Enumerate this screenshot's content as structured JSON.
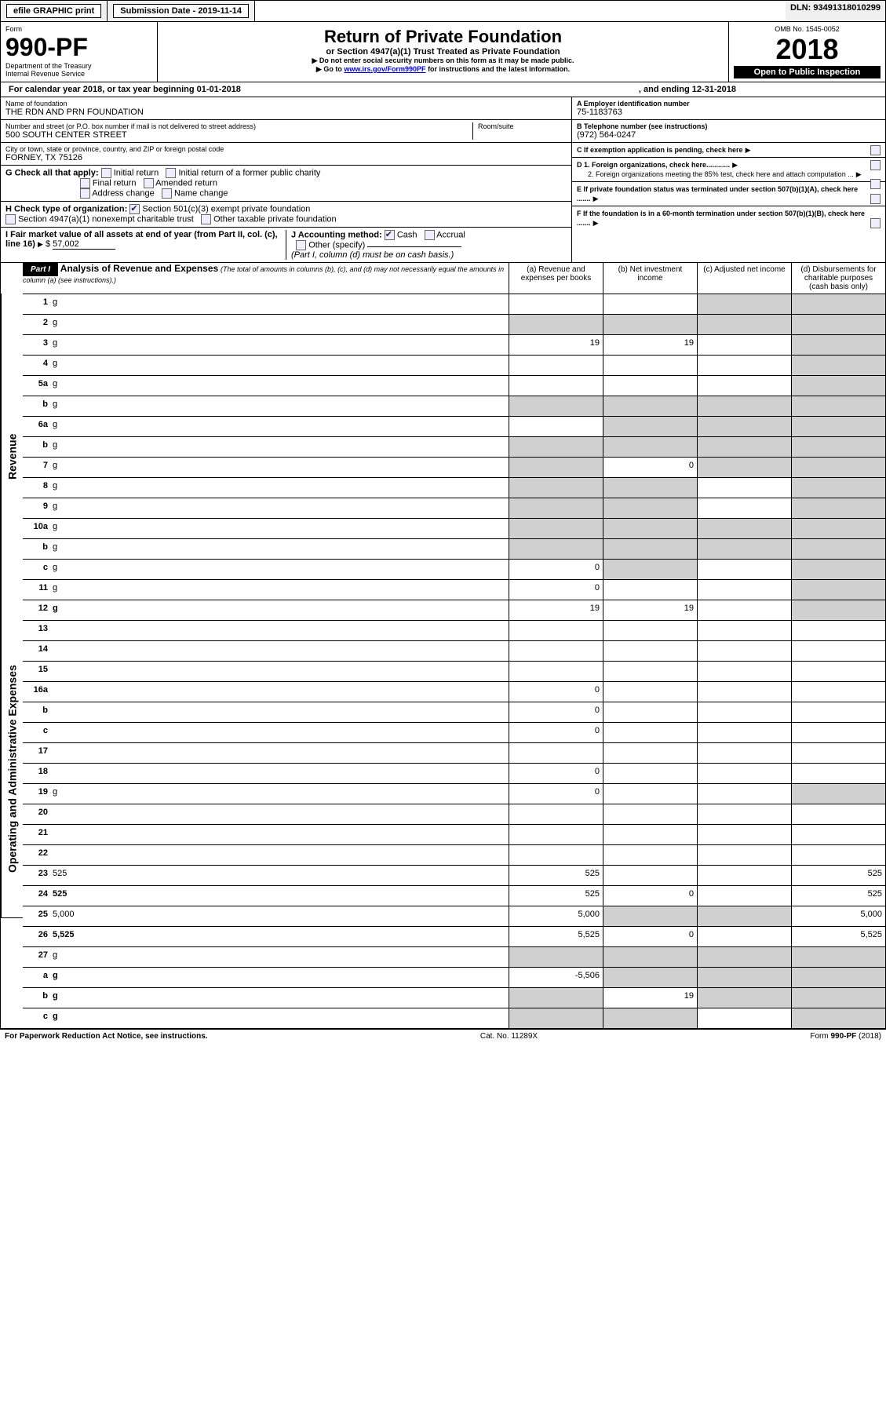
{
  "topbar": {
    "efile": "efile GRAPHIC print",
    "submission": "Submission Date - 2019-11-14",
    "dln": "DLN: 93491318010299"
  },
  "header": {
    "form_label": "Form",
    "form_number": "990-PF",
    "dept": "Department of the Treasury",
    "irs": "Internal Revenue Service",
    "title": "Return of Private Foundation",
    "subtitle": "or Section 4947(a)(1) Trust Treated as Private Foundation",
    "note1": "Do not enter social security numbers on this form as it may be made public.",
    "note2_pre": "Go to ",
    "note2_link": "www.irs.gov/Form990PF",
    "note2_post": " for instructions and the latest information.",
    "omb": "OMB No. 1545-0052",
    "year": "2018",
    "open": "Open to Public Inspection"
  },
  "yearline": {
    "prefix": "For calendar year 2018, or tax year beginning 01-01-2018",
    "ending": ", and ending 12-31-2018"
  },
  "entity": {
    "name_label": "Name of foundation",
    "name": "THE RDN AND PRN FOUNDATION",
    "addr_label": "Number and street (or P.O. box number if mail is not delivered to street address)",
    "addr": "500 SOUTH CENTER STREET",
    "room_label": "Room/suite",
    "city_label": "City or town, state or province, country, and ZIP or foreign postal code",
    "city": "FORNEY, TX  75126"
  },
  "ein": {
    "label": "A Employer identification number",
    "value": "75-1183763"
  },
  "phone": {
    "label": "B Telephone number (see instructions)",
    "value": "(972) 564-0247"
  },
  "boxC": "C If exemption application is pending, check here",
  "boxD1": "D 1. Foreign organizations, check here............",
  "boxD2": "2. Foreign organizations meeting the 85% test, check here and attach computation ...",
  "boxE": "E  If private foundation status was terminated under section 507(b)(1)(A), check here .......",
  "boxF": "F  If the foundation is in a 60-month termination under section 507(b)(1)(B), check here .......",
  "boxG": {
    "label": "G Check all that apply:",
    "opts": [
      "Initial return",
      "Initial return of a former public charity",
      "Final return",
      "Amended return",
      "Address change",
      "Name change"
    ]
  },
  "boxH": {
    "label": "H Check type of organization:",
    "opt1": "Section 501(c)(3) exempt private foundation",
    "opt2": "Section 4947(a)(1) nonexempt charitable trust",
    "opt3": "Other taxable private foundation"
  },
  "boxI": {
    "label": "I Fair market value of all assets at end of year (from Part II, col. (c), line 16)",
    "arrow": "$",
    "value": "57,002"
  },
  "boxJ": {
    "label": "J Accounting method:",
    "cash": "Cash",
    "accrual": "Accrual",
    "other": "Other (specify)",
    "note": "(Part I, column (d) must be on cash basis.)"
  },
  "part1": {
    "title": "Part I",
    "heading": "Analysis of Revenue and Expenses",
    "heading_note": "(The total of amounts in columns (b), (c), and (d) may not necessarily equal the amounts in column (a) (see instructions).)",
    "cols": {
      "a": "(a)   Revenue and expenses per books",
      "b": "(b)   Net investment income",
      "c": "(c)   Adjusted net income",
      "d": "(d)   Disbursements for charitable purposes (cash basis only)"
    }
  },
  "side_labels": {
    "revenue": "Revenue",
    "expenses": "Operating and Administrative Expenses"
  },
  "rows": [
    {
      "n": "1",
      "d": "g",
      "a": "",
      "b": "",
      "c": "g"
    },
    {
      "n": "2",
      "d": "g",
      "a": "g",
      "b": "g",
      "c": "g"
    },
    {
      "n": "3",
      "d": "g",
      "a": "19",
      "b": "19",
      "c": ""
    },
    {
      "n": "4",
      "d": "g",
      "a": "",
      "b": "",
      "c": ""
    },
    {
      "n": "5a",
      "d": "g",
      "a": "",
      "b": "",
      "c": ""
    },
    {
      "n": "b",
      "d": "g",
      "a": "g",
      "b": "g",
      "c": "g"
    },
    {
      "n": "6a",
      "d": "g",
      "a": "",
      "b": "g",
      "c": "g"
    },
    {
      "n": "b",
      "d": "g",
      "a": "g",
      "b": "g",
      "c": "g"
    },
    {
      "n": "7",
      "d": "g",
      "a": "g",
      "b": "0",
      "c": "g"
    },
    {
      "n": "8",
      "d": "g",
      "a": "g",
      "b": "g",
      "c": ""
    },
    {
      "n": "9",
      "d": "g",
      "a": "g",
      "b": "g",
      "c": ""
    },
    {
      "n": "10a",
      "d": "g",
      "a": "g",
      "b": "g",
      "c": "g"
    },
    {
      "n": "b",
      "d": "g",
      "a": "g",
      "b": "g",
      "c": "g"
    },
    {
      "n": "c",
      "d": "g",
      "a": "0",
      "b": "g",
      "c": ""
    },
    {
      "n": "11",
      "d": "g",
      "a": "0",
      "b": "",
      "c": ""
    },
    {
      "n": "12",
      "d": "g",
      "bold": true,
      "a": "19",
      "b": "19",
      "c": ""
    },
    {
      "n": "13",
      "d": "",
      "a": "",
      "b": "",
      "c": ""
    },
    {
      "n": "14",
      "d": "",
      "a": "",
      "b": "",
      "c": ""
    },
    {
      "n": "15",
      "d": "",
      "a": "",
      "b": "",
      "c": ""
    },
    {
      "n": "16a",
      "d": "",
      "a": "0",
      "b": "",
      "c": ""
    },
    {
      "n": "b",
      "d": "",
      "a": "0",
      "b": "",
      "c": ""
    },
    {
      "n": "c",
      "d": "",
      "a": "0",
      "b": "",
      "c": ""
    },
    {
      "n": "17",
      "d": "",
      "a": "",
      "b": "",
      "c": ""
    },
    {
      "n": "18",
      "d": "",
      "a": "0",
      "b": "",
      "c": ""
    },
    {
      "n": "19",
      "d": "g",
      "a": "0",
      "b": "",
      "c": ""
    },
    {
      "n": "20",
      "d": "",
      "a": "",
      "b": "",
      "c": ""
    },
    {
      "n": "21",
      "d": "",
      "a": "",
      "b": "",
      "c": ""
    },
    {
      "n": "22",
      "d": "",
      "a": "",
      "b": "",
      "c": ""
    },
    {
      "n": "23",
      "d": "525",
      "a": "525",
      "b": "",
      "c": ""
    },
    {
      "n": "24",
      "d": "525",
      "bold": true,
      "a": "525",
      "b": "0",
      "c": ""
    },
    {
      "n": "25",
      "d": "5,000",
      "a": "5,000",
      "b": "g",
      "c": "g"
    },
    {
      "n": "26",
      "d": "5,525",
      "bold": true,
      "a": "5,525",
      "b": "0",
      "c": ""
    },
    {
      "n": "27",
      "d": "g",
      "a": "g",
      "b": "g",
      "c": "g"
    },
    {
      "n": "a",
      "d": "g",
      "bold": true,
      "a": "-5,506",
      "b": "g",
      "c": "g"
    },
    {
      "n": "b",
      "d": "g",
      "bold": true,
      "a": "g",
      "b": "19",
      "c": "g"
    },
    {
      "n": "c",
      "d": "g",
      "bold": true,
      "a": "g",
      "b": "g",
      "c": ""
    }
  ],
  "footer": {
    "left": "For Paperwork Reduction Act Notice, see instructions.",
    "mid": "Cat. No. 11289X",
    "right": "Form 990-PF (2018)"
  },
  "colors": {
    "gray": "#d0d0d0",
    "link": "#0000d0",
    "bg_top": "#f0f0f0"
  }
}
